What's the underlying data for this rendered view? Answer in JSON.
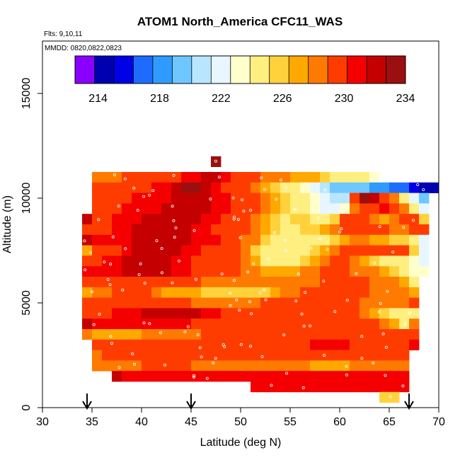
{
  "chart_data": {
    "type": "heatmap",
    "title": "ATOM1 North_America CFC11_WAS",
    "annotations": {
      "flights": "Flts: 9,10,11",
      "dates": "MMDD: 0820,0822,0823"
    },
    "xlabel": "Latitude (deg N)",
    "ylabel": "Altitude (m)",
    "xlim": [
      30,
      70
    ],
    "ylim": [
      0,
      17500
    ],
    "xticks": [
      "30",
      "35",
      "40",
      "45",
      "50",
      "55",
      "60",
      "65",
      "70"
    ],
    "yticks": [
      "0",
      "5000",
      "10000",
      "15000"
    ],
    "grid": false,
    "colorbar": {
      "position": "top inside",
      "range": [
        212.5,
        234
      ],
      "ticks": [
        "214",
        "218",
        "222",
        "226",
        "230",
        "234"
      ],
      "colors": [
        "#8a00ff",
        "#0000b0",
        "#0000e6",
        "#1e6cff",
        "#2f9bff",
        "#6fc7ff",
        "#b8e6ff",
        "#e8f6ff",
        "#ffffcc",
        "#ffef80",
        "#ffd23c",
        "#ffa800",
        "#ff7a00",
        "#ff3c00",
        "#f50000",
        "#c40000",
        "#9a1010"
      ]
    },
    "markers": {
      "latitudes": [
        34.5,
        45,
        67
      ],
      "symbol": "down-arrow"
    },
    "rows": [
      {
        "alt": 11750,
        "lat_start": 47,
        "lat_end": 48,
        "values": [
          233
        ]
      },
      {
        "alt": 11000,
        "lat_start": 35,
        "lat_end": 64,
        "values": [
          228,
          228,
          228,
          229,
          229,
          229,
          230,
          230,
          230,
          231,
          231,
          232,
          232,
          231,
          230,
          230,
          229,
          228,
          228,
          228,
          227,
          227,
          227,
          226,
          225,
          225,
          224,
          224,
          223
        ]
      },
      {
        "alt": 10500,
        "lat_start": 35,
        "lat_end": 70,
        "values": [
          229,
          229,
          230,
          230,
          230,
          230,
          231,
          231,
          232,
          233,
          233,
          232,
          231,
          230,
          230,
          229,
          228,
          227,
          226,
          225,
          224,
          223,
          222,
          221,
          220,
          219,
          219,
          219,
          218,
          218,
          217,
          217,
          216,
          215,
          214
        ]
      },
      {
        "alt": 10000,
        "lat_start": 35,
        "lat_end": 69,
        "values": [
          229,
          230,
          230,
          230,
          231,
          231,
          231,
          231,
          232,
          232,
          232,
          232,
          231,
          231,
          230,
          230,
          229,
          228,
          227,
          226,
          225,
          224,
          223,
          222,
          221,
          221,
          230,
          233,
          232,
          230,
          228,
          225,
          222,
          219
        ]
      },
      {
        "alt": 9500,
        "lat_start": 35,
        "lat_end": 69,
        "values": [
          229,
          229,
          230,
          231,
          231,
          231,
          231,
          232,
          232,
          232,
          232,
          232,
          231,
          231,
          230,
          230,
          229,
          228,
          227,
          226,
          225,
          224,
          223,
          222,
          222,
          223,
          228,
          229,
          230,
          231,
          229,
          228,
          224,
          222
        ]
      },
      {
        "alt": 9000,
        "lat_start": 34,
        "lat_end": 69,
        "values": [
          232,
          230,
          230,
          231,
          231,
          231,
          232,
          232,
          232,
          232,
          232,
          232,
          231,
          231,
          230,
          230,
          229,
          228,
          227,
          226,
          225,
          226,
          226,
          225,
          224,
          226,
          229,
          230,
          229,
          228,
          227,
          228,
          229,
          229,
          226
        ]
      },
      {
        "alt": 8500,
        "lat_start": 34,
        "lat_end": 69,
        "values": [
          229,
          230,
          230,
          231,
          231,
          232,
          232,
          232,
          232,
          232,
          232,
          231,
          231,
          230,
          230,
          229,
          229,
          228,
          227,
          226,
          225,
          225,
          226,
          226,
          227,
          228,
          229,
          229,
          229,
          229,
          229,
          228,
          228,
          229,
          230
        ]
      },
      {
        "alt": 8000,
        "lat_start": 34,
        "lat_end": 69,
        "values": [
          232,
          231,
          231,
          231,
          231,
          232,
          232,
          232,
          232,
          232,
          232,
          231,
          231,
          231,
          230,
          229,
          228,
          228,
          226,
          225,
          224,
          224,
          224,
          224,
          225,
          226,
          227,
          228,
          228,
          227,
          227,
          226,
          226,
          224,
          222
        ]
      },
      {
        "alt": 7500,
        "lat_start": 34,
        "lat_end": 69,
        "values": [
          227,
          229,
          230,
          230,
          231,
          232,
          232,
          232,
          232,
          232,
          231,
          231,
          230,
          230,
          229,
          229,
          228,
          226,
          225,
          224,
          224,
          224,
          225,
          226,
          227,
          228,
          229,
          230,
          230,
          229,
          229,
          230,
          230,
          226,
          222
        ]
      },
      {
        "alt": 7000,
        "lat_start": 34,
        "lat_end": 69,
        "values": [
          229,
          230,
          231,
          231,
          232,
          232,
          232,
          232,
          232,
          231,
          231,
          230,
          230,
          230,
          230,
          229,
          228,
          227,
          225,
          224,
          224,
          225,
          226,
          227,
          228,
          229,
          229,
          228,
          227,
          226,
          225,
          224,
          225,
          223,
          222
        ]
      },
      {
        "alt": 6500,
        "lat_start": 34,
        "lat_end": 69,
        "values": [
          231,
          231,
          231,
          231,
          232,
          232,
          232,
          232,
          232,
          231,
          231,
          230,
          230,
          230,
          229,
          229,
          228,
          228,
          227,
          227,
          227,
          227,
          228,
          228,
          229,
          229,
          229,
          228,
          228,
          228,
          227,
          226,
          224,
          223,
          223
        ]
      },
      {
        "alt": 6000,
        "lat_start": 34,
        "lat_end": 68,
        "values": [
          229,
          229,
          230,
          230,
          230,
          230,
          230,
          230,
          230,
          229,
          229,
          229,
          228,
          228,
          228,
          228,
          228,
          228,
          228,
          228,
          228,
          228,
          228,
          228,
          229,
          229,
          229,
          229,
          229,
          228,
          228,
          228,
          227,
          225
        ]
      },
      {
        "alt": 5500,
        "lat_start": 34,
        "lat_end": 68,
        "values": [
          227,
          228,
          228,
          229,
          229,
          229,
          229,
          228,
          227,
          227,
          227,
          227,
          226,
          226,
          226,
          226,
          226,
          226,
          226,
          227,
          228,
          228,
          229,
          229,
          230,
          230,
          230,
          229,
          229,
          228,
          228,
          228,
          228,
          227
        ]
      },
      {
        "alt": 5000,
        "lat_start": 34,
        "lat_end": 68,
        "values": [
          229,
          229,
          229,
          229,
          230,
          230,
          230,
          230,
          229,
          229,
          229,
          228,
          228,
          228,
          228,
          228,
          228,
          228,
          229,
          229,
          229,
          230,
          230,
          230,
          230,
          230,
          229,
          229,
          228,
          228,
          228,
          228,
          228,
          229
        ]
      },
      {
        "alt": 4500,
        "lat_start": 34,
        "lat_end": 68,
        "values": [
          229,
          230,
          230,
          231,
          231,
          231,
          232,
          232,
          232,
          232,
          232,
          232,
          231,
          231,
          230,
          230,
          230,
          229,
          229,
          229,
          229,
          229,
          229,
          229,
          229,
          229,
          229,
          229,
          228,
          227,
          226,
          225,
          224,
          224
        ]
      },
      {
        "alt": 4000,
        "lat_start": 34,
        "lat_end": 68,
        "values": [
          232,
          231,
          231,
          231,
          231,
          231,
          231,
          231,
          231,
          231,
          231,
          230,
          230,
          230,
          230,
          230,
          230,
          230,
          229,
          229,
          229,
          229,
          229,
          229,
          229,
          229,
          229,
          229,
          229,
          229,
          228,
          227,
          225,
          228
        ]
      },
      {
        "alt": 3500,
        "lat_start": 34,
        "lat_end": 68,
        "values": [
          228,
          227,
          227,
          227,
          227,
          227,
          228,
          228,
          228,
          228,
          228,
          228,
          229,
          229,
          229,
          229,
          229,
          229,
          229,
          229,
          229,
          229,
          229,
          229,
          229,
          229,
          229,
          229,
          229,
          229,
          229,
          229,
          229,
          229
        ]
      },
      {
        "alt": 3000,
        "lat_start": 35,
        "lat_end": 68,
        "values": [
          229,
          229,
          229,
          229,
          229,
          229,
          230,
          230,
          230,
          230,
          230,
          230,
          230,
          230,
          230,
          230,
          230,
          230,
          230,
          230,
          230,
          230,
          231,
          231,
          231,
          231,
          230,
          230,
          230,
          230,
          230,
          230,
          231
        ]
      },
      {
        "alt": 2500,
        "lat_start": 35,
        "lat_end": 67,
        "values": [
          228,
          229,
          229,
          229,
          230,
          230,
          230,
          230,
          230,
          230,
          230,
          230,
          230,
          229,
          229,
          229,
          229,
          229,
          229,
          229,
          229,
          229,
          229,
          229,
          229,
          229,
          229,
          229,
          229,
          229,
          229,
          229
        ]
      },
      {
        "alt": 2000,
        "lat_start": 35,
        "lat_end": 67,
        "values": [
          228,
          228,
          228,
          228,
          228,
          229,
          229,
          229,
          229,
          229,
          228,
          228,
          228,
          228,
          228,
          228,
          228,
          228,
          228,
          228,
          228,
          228,
          227,
          227,
          227,
          227,
          228,
          228,
          228,
          228,
          228,
          228
        ]
      },
      {
        "alt": 1500,
        "lat_start": 37,
        "lat_end": 67,
        "values": [
          232,
          231,
          231,
          231,
          231,
          231,
          231,
          231,
          231,
          231,
          231,
          231,
          231,
          231,
          231,
          231,
          231,
          231,
          231,
          231,
          231,
          231,
          231,
          231,
          231,
          231,
          231,
          231,
          231,
          231
        ]
      },
      {
        "alt": 1000,
        "lat_start": 51,
        "lat_end": 67,
        "values": [
          231,
          231,
          231,
          231,
          231,
          231,
          231,
          231,
          231,
          231,
          231,
          231,
          231,
          231,
          231,
          231
        ]
      },
      {
        "alt": 500,
        "lat_start": 64,
        "lat_end": 66,
        "values": [
          226,
          226
        ]
      }
    ]
  }
}
